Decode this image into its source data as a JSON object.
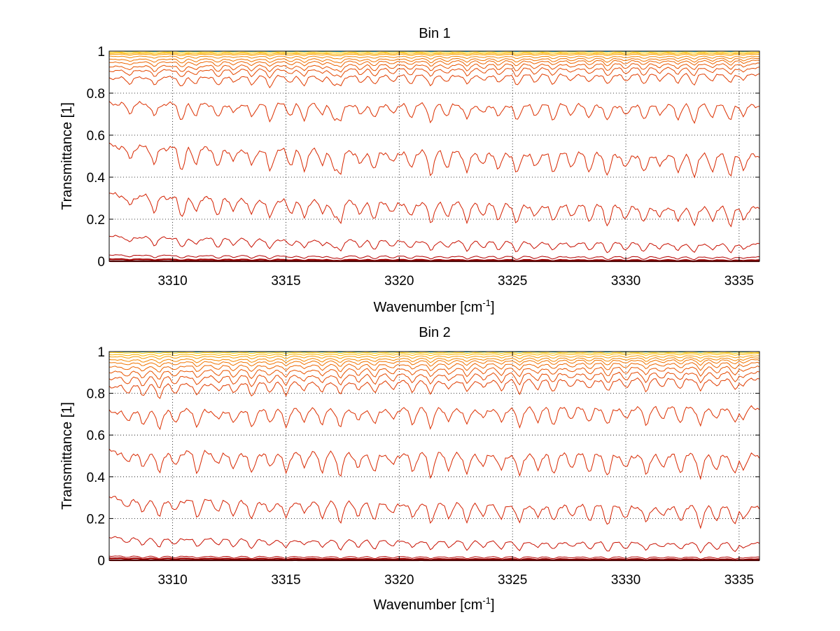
{
  "chart_data": [
    {
      "type": "line",
      "title": "Bin 1",
      "xlabel": "Wavenumber [cm",
      "xlabel_sup": "-1",
      "xlabel_end": "]",
      "ylabel": "Transmittance [1]",
      "xlim": [
        3307.2,
        3335.9
      ],
      "ylim": [
        0,
        1
      ],
      "x_ticks": [
        3310,
        3315,
        3320,
        3325,
        3330,
        3335
      ],
      "y_ticks": [
        0,
        0.2,
        0.4,
        0.6,
        0.8,
        1
      ],
      "y_tick_labels": [
        "0",
        "0.2",
        "0.4",
        "0.6",
        "0.8",
        "1"
      ],
      "grid": true,
      "line_baselines": [
        0.0,
        0.01,
        0.03,
        0.12,
        0.32,
        0.55,
        0.75,
        0.87,
        0.905,
        0.925,
        0.945,
        0.96,
        0.975,
        0.985,
        0.99,
        0.995,
        1.0,
        1.0
      ],
      "line_end_values": [
        0.0,
        0.005,
        0.02,
        0.08,
        0.25,
        0.5,
        0.74,
        0.89,
        0.92,
        0.94,
        0.955,
        0.965,
        0.975,
        0.985,
        0.99,
        0.995,
        1.0,
        1.0
      ],
      "line_colors": [
        "#8b0000",
        "#a00000",
        "#b40000",
        "#c81000",
        "#d42000",
        "#d82800",
        "#dc3000",
        "#e03c00",
        "#e44800",
        "#e85400",
        "#ec6400",
        "#f07400",
        "#f48800",
        "#f89c00",
        "#fcb400",
        "#ffcc00",
        "#e8e000",
        "#00b8e0"
      ],
      "absorption_lines": [
        3308.1,
        3309.2,
        3310.4,
        3311.0,
        3312.0,
        3312.7,
        3313.5,
        3314.3,
        3315.2,
        3315.8,
        3316.6,
        3317.1,
        3317.4,
        3318.3,
        3318.9,
        3319.7,
        3320.5,
        3321.4,
        3322.1,
        3323.0,
        3323.7,
        3324.4,
        3325.2,
        3326.0,
        3326.8,
        3327.6,
        3328.4,
        3329.2,
        3330.0,
        3330.8,
        3331.5,
        3332.3,
        3333.0,
        3333.8,
        3334.6,
        3335.2
      ]
    },
    {
      "type": "line",
      "title": "Bin 2",
      "xlabel": "Wavenumber [cm",
      "xlabel_sup": "-1",
      "xlabel_end": "]",
      "ylabel": "Transmittance [1]",
      "xlim": [
        3307.2,
        3335.9
      ],
      "ylim": [
        0,
        1
      ],
      "x_ticks": [
        3310,
        3315,
        3320,
        3325,
        3330,
        3335
      ],
      "y_ticks": [
        0,
        0.2,
        0.4,
        0.6,
        0.8,
        1
      ],
      "y_tick_labels": [
        "0",
        "0.2",
        "0.4",
        "0.6",
        "0.8",
        "1"
      ],
      "grid": true,
      "line_baselines": [
        0.0,
        0.01,
        0.02,
        0.11,
        0.3,
        0.52,
        0.71,
        0.83,
        0.87,
        0.9,
        0.925,
        0.945,
        0.96,
        0.975,
        0.985,
        0.995,
        1.0,
        1.0
      ],
      "line_end_values": [
        0.0,
        0.005,
        0.015,
        0.08,
        0.25,
        0.5,
        0.73,
        0.87,
        0.9,
        0.925,
        0.945,
        0.96,
        0.97,
        0.98,
        0.99,
        0.995,
        1.0,
        1.0
      ],
      "line_colors": [
        "#8b0000",
        "#a00000",
        "#b40000",
        "#c81000",
        "#d42000",
        "#d82800",
        "#dc3000",
        "#e03c00",
        "#e44800",
        "#e85400",
        "#ec6400",
        "#f07400",
        "#f48800",
        "#f89c00",
        "#fcb400",
        "#ffcc00",
        "#e8e000",
        "#00b8e0"
      ],
      "absorption_lines": [
        3308.0,
        3308.7,
        3309.4,
        3310.1,
        3311.1,
        3312.0,
        3312.7,
        3313.5,
        3314.3,
        3315.0,
        3315.8,
        3316.6,
        3317.4,
        3318.2,
        3318.9,
        3319.7,
        3320.6,
        3321.4,
        3322.2,
        3323.0,
        3323.7,
        3324.5,
        3325.3,
        3326.1,
        3326.8,
        3327.6,
        3328.4,
        3329.2,
        3330.0,
        3330.9,
        3331.6,
        3332.4,
        3333.3,
        3334.0,
        3334.8,
        3335.2
      ]
    }
  ]
}
